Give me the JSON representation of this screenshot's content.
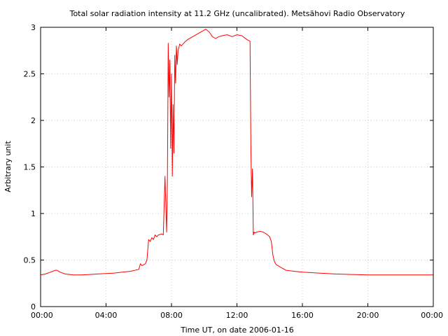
{
  "chart_data": {
    "type": "line",
    "title": "Total solar radiation intensity at 11.2 GHz (uncalibrated). Metsähovi Radio Observatory",
    "xlabel": "Time UT, on date 2006-01-16",
    "ylabel": "Arbitrary unit",
    "xlim": [
      0,
      24
    ],
    "ylim": [
      0,
      3
    ],
    "x_ticks": [
      {
        "value": 0,
        "label": "00:00"
      },
      {
        "value": 4,
        "label": "04:00"
      },
      {
        "value": 8,
        "label": "08:00"
      },
      {
        "value": 12,
        "label": "12:00"
      },
      {
        "value": 16,
        "label": "16:00"
      },
      {
        "value": 20,
        "label": "20:00"
      },
      {
        "value": 24,
        "label": "00:00"
      }
    ],
    "y_ticks": [
      {
        "value": 0,
        "label": "0"
      },
      {
        "value": 0.5,
        "label": "0.5"
      },
      {
        "value": 1,
        "label": "1"
      },
      {
        "value": 1.5,
        "label": "1.5"
      },
      {
        "value": 2,
        "label": "2"
      },
      {
        "value": 2.5,
        "label": "2.5"
      },
      {
        "value": 3,
        "label": "3"
      }
    ],
    "grid": true,
    "series": [
      {
        "color": "#ff0000",
        "x": [
          0.0,
          0.3,
          0.6,
          0.9,
          1.0,
          1.2,
          1.5,
          2.0,
          2.5,
          3.0,
          3.5,
          4.0,
          4.5,
          5.0,
          5.5,
          6.0,
          6.1,
          6.2,
          6.4,
          6.5,
          6.6,
          6.7,
          6.8,
          6.9,
          7.0,
          7.1,
          7.2,
          7.4,
          7.5,
          7.6,
          7.7,
          7.75,
          7.8,
          7.85,
          7.9,
          7.95,
          8.0,
          8.05,
          8.1,
          8.15,
          8.2,
          8.25,
          8.3,
          8.35,
          8.4,
          8.45,
          8.5,
          8.6,
          8.8,
          9.0,
          9.3,
          9.6,
          9.9,
          10.1,
          10.3,
          10.5,
          10.7,
          10.9,
          11.1,
          11.4,
          11.7,
          12.0,
          12.3,
          12.6,
          12.8,
          12.85,
          12.9,
          12.95,
          13.0,
          13.05,
          13.1,
          13.2,
          13.4,
          13.6,
          13.8,
          14.0,
          14.1,
          14.2,
          14.3,
          14.4,
          14.6,
          14.8,
          15.0,
          15.5,
          16.0,
          17.0,
          18.0,
          19.0,
          20.0,
          21.0,
          22.0,
          23.0,
          24.0
        ],
        "y": [
          0.34,
          0.35,
          0.37,
          0.39,
          0.39,
          0.37,
          0.35,
          0.34,
          0.34,
          0.345,
          0.35,
          0.355,
          0.36,
          0.37,
          0.38,
          0.4,
          0.46,
          0.44,
          0.46,
          0.5,
          0.72,
          0.7,
          0.74,
          0.72,
          0.77,
          0.75,
          0.77,
          0.78,
          0.77,
          1.4,
          0.8,
          1.35,
          2.83,
          2.25,
          2.65,
          1.7,
          2.5,
          1.4,
          2.17,
          1.65,
          2.7,
          2.4,
          2.8,
          2.6,
          2.75,
          2.78,
          2.82,
          2.8,
          2.84,
          2.87,
          2.9,
          2.93,
          2.96,
          2.98,
          2.95,
          2.9,
          2.88,
          2.9,
          2.91,
          2.92,
          2.9,
          2.92,
          2.91,
          2.87,
          2.85,
          1.7,
          1.18,
          1.48,
          0.77,
          0.8,
          0.79,
          0.8,
          0.81,
          0.8,
          0.78,
          0.75,
          0.7,
          0.55,
          0.48,
          0.45,
          0.43,
          0.41,
          0.39,
          0.38,
          0.37,
          0.36,
          0.35,
          0.345,
          0.34,
          0.34,
          0.34,
          0.34,
          0.34
        ]
      }
    ]
  }
}
